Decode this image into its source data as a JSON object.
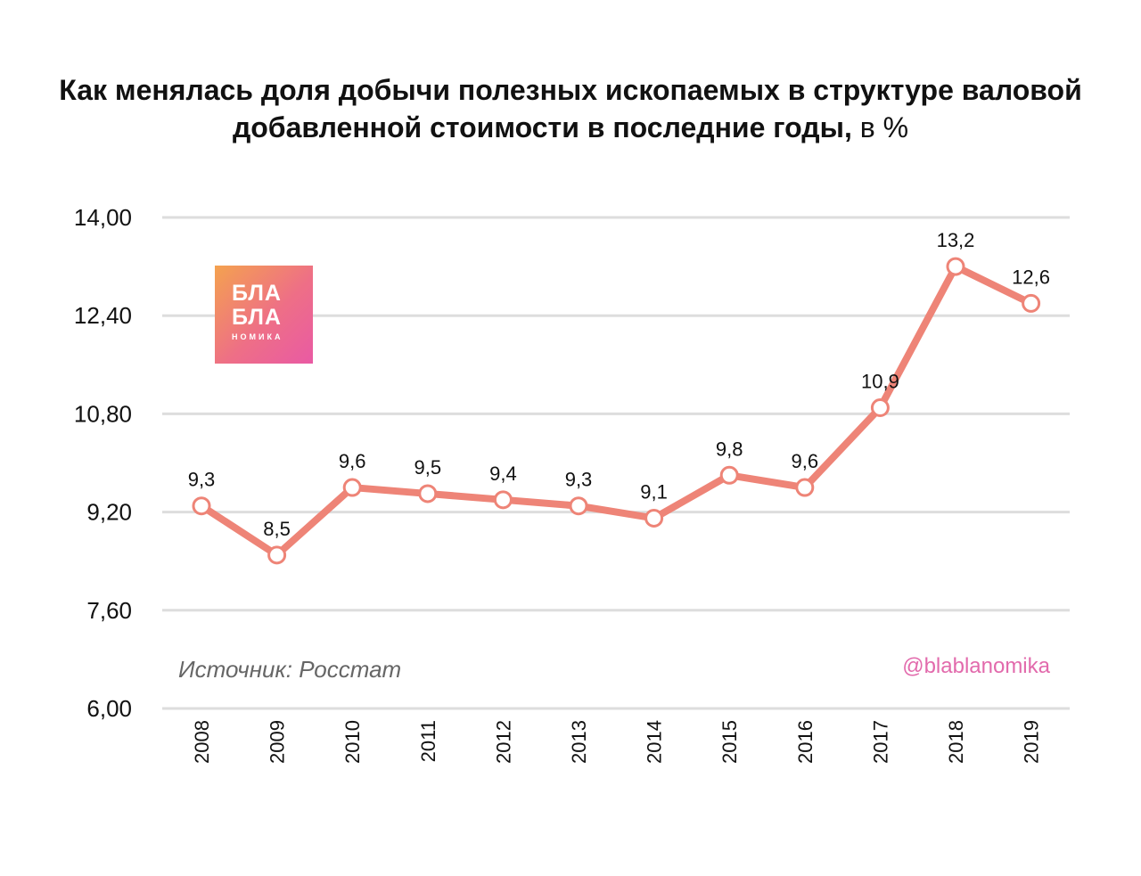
{
  "title_main": "Как менялась доля добычи полезных ископаемых в структуре валовой добавленной стоимости в последние годы,",
  "title_unit": "в %",
  "logo": {
    "line1": "БЛА",
    "line2": "БЛА",
    "line3": "НОМИКА"
  },
  "source": "Источник: Росстат",
  "handle": "@blablanomika",
  "colors": {
    "line": "#ee8477",
    "grid": "#dddddd",
    "handle": "#e26aac",
    "marker_fill": "#ffffff"
  },
  "chart_data": {
    "type": "line",
    "categories": [
      "2008",
      "2009",
      "2010",
      "2011",
      "2012",
      "2013",
      "2014",
      "2015",
      "2016",
      "2017",
      "2018",
      "2019"
    ],
    "values": [
      9.3,
      8.5,
      9.6,
      9.5,
      9.4,
      9.3,
      9.1,
      9.8,
      9.6,
      10.9,
      13.2,
      12.6
    ],
    "value_labels": [
      "9,3",
      "8,5",
      "9,6",
      "9,5",
      "9,4",
      "9,3",
      "9,1",
      "9,8",
      "9,6",
      "10,9",
      "13,2",
      "12,6"
    ],
    "yticks": [
      6.0,
      7.6,
      9.2,
      10.8,
      12.4,
      14.0
    ],
    "ytick_labels": [
      "6,00",
      "7,60",
      "9,20",
      "10,80",
      "12,40",
      "14,00"
    ],
    "ylim": [
      6.0,
      14.0
    ],
    "title": "Как менялась доля добычи полезных ископаемых в структуре валовой добавленной стоимости в последние годы, в %",
    "xlabel": "",
    "ylabel": "",
    "grid": true
  }
}
